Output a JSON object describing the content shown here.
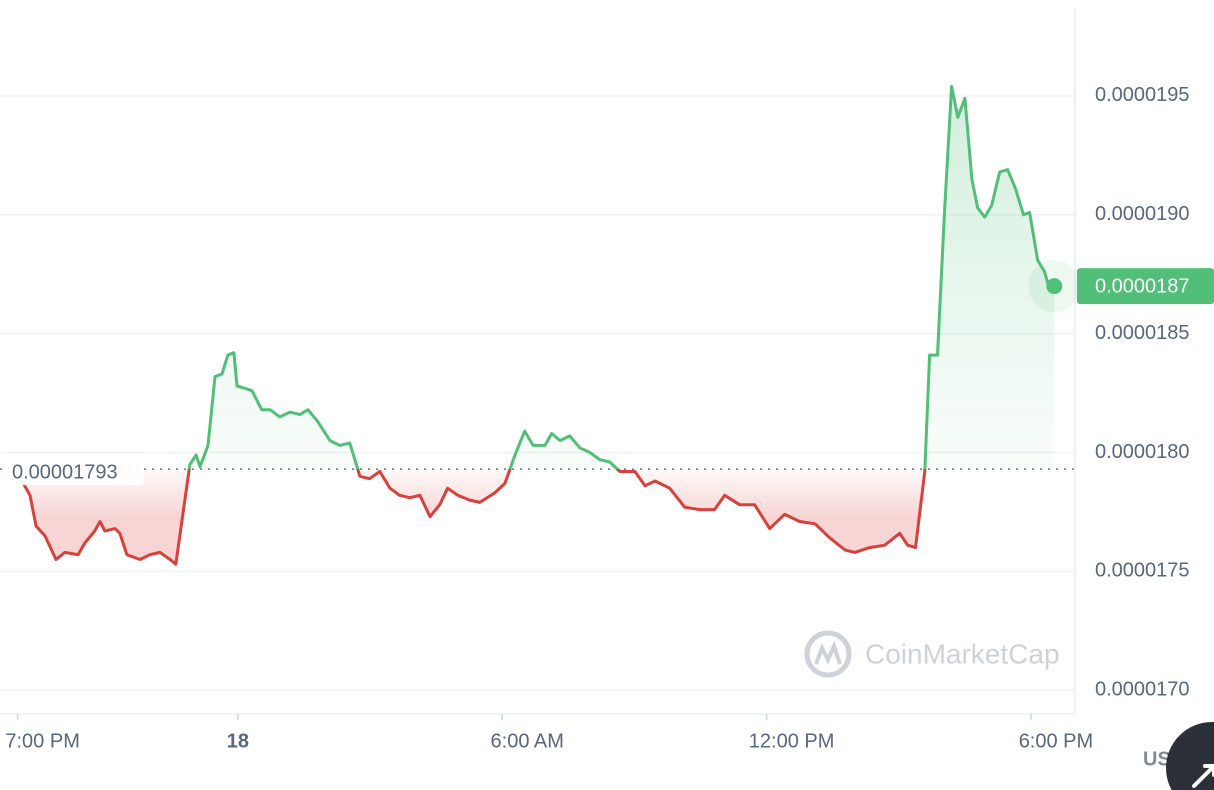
{
  "chart_data": {
    "type": "line",
    "x": [
      -4.9,
      -4.72,
      -4.58,
      -4.38,
      -4.13,
      -3.93,
      -3.63,
      -3.47,
      -3.25,
      -3.13,
      -3.02,
      -2.79,
      -2.68,
      -2.52,
      -2.22,
      -2.0,
      -1.77,
      -1.54,
      -1.41,
      -1.09,
      -0.95,
      -0.86,
      -0.68,
      -0.52,
      -0.36,
      -0.23,
      -0.09,
      -0.02,
      0.16,
      0.32,
      0.54,
      0.73,
      0.95,
      1.18,
      1.41,
      1.59,
      1.81,
      2.09,
      2.31,
      2.54,
      2.77,
      2.99,
      3.22,
      3.45,
      3.67,
      3.9,
      4.13,
      4.36,
      4.58,
      4.76,
      4.99,
      5.26,
      5.49,
      5.83,
      6.06,
      6.29,
      6.51,
      6.7,
      6.97,
      7.12,
      7.31,
      7.53,
      7.76,
      7.99,
      8.21,
      8.44,
      8.67,
      9.01,
      9.24,
      9.47,
      9.8,
      10.14,
      10.48,
      10.82,
      11.05,
      11.39,
      11.73,
      12.07,
      12.41,
      12.75,
      13.1,
      13.44,
      13.78,
      14.0,
      14.34,
      14.68,
      15.02,
      15.2,
      15.38,
      15.59,
      15.7,
      15.88,
      16.04,
      16.2,
      16.34,
      16.5,
      16.66,
      16.79,
      16.95,
      17.11,
      17.29,
      17.47,
      17.65,
      17.83,
      17.97,
      18.15,
      18.31,
      18.43,
      18.53
    ],
    "values": [
      1.788e-05,
      1.782e-05,
      1.769e-05,
      1.765e-05,
      1.755e-05,
      1.758e-05,
      1.757e-05,
      1.762e-05,
      1.767e-05,
      1.771e-05,
      1.767e-05,
      1.768e-05,
      1.766e-05,
      1.757e-05,
      1.755e-05,
      1.757e-05,
      1.758e-05,
      1.755e-05,
      1.753e-05,
      1.795e-05,
      1.799e-05,
      1.794e-05,
      1.803e-05,
      1.832e-05,
      1.833e-05,
      1.841e-05,
      1.842e-05,
      1.828e-05,
      1.827e-05,
      1.826e-05,
      1.818e-05,
      1.818e-05,
      1.815e-05,
      1.817e-05,
      1.816e-05,
      1.818e-05,
      1.813e-05,
      1.805e-05,
      1.803e-05,
      1.804e-05,
      1.79e-05,
      1.789e-05,
      1.792e-05,
      1.785e-05,
      1.782e-05,
      1.781e-05,
      1.782e-05,
      1.773e-05,
      1.778e-05,
      1.785e-05,
      1.782e-05,
      1.78e-05,
      1.779e-05,
      1.783e-05,
      1.787e-05,
      1.799e-05,
      1.809e-05,
      1.803e-05,
      1.803e-05,
      1.808e-05,
      1.805e-05,
      1.807e-05,
      1.802e-05,
      1.8e-05,
      1.797e-05,
      1.796e-05,
      1.792e-05,
      1.792e-05,
      1.786e-05,
      1.788e-05,
      1.785e-05,
      1.777e-05,
      1.776e-05,
      1.776e-05,
      1.782e-05,
      1.778e-05,
      1.778e-05,
      1.768e-05,
      1.774e-05,
      1.771e-05,
      1.77e-05,
      1.764e-05,
      1.759e-05,
      1.758e-05,
      1.76e-05,
      1.761e-05,
      1.766e-05,
      1.761e-05,
      1.76e-05,
      1.792e-05,
      1.841e-05,
      1.841e-05,
      1.902e-05,
      1.954e-05,
      1.941e-05,
      1.949e-05,
      1.915e-05,
      1.903e-05,
      1.899e-05,
      1.904e-05,
      1.918e-05,
      1.919e-05,
      1.911e-05,
      1.9e-05,
      1.901e-05,
      1.881e-05,
      1.876e-05,
      1.868e-05,
      1.87e-05
    ],
    "up_color": "#52bf78",
    "down_color": "#d9403b",
    "baseline": 1.793e-05,
    "current_price": 1.87e-05,
    "xlim": [
      -5.4,
      19.0
    ],
    "xticks": [
      {
        "value": -5,
        "label": "7:00 PM"
      },
      {
        "value": 0,
        "label": "18"
      },
      {
        "value": 6,
        "label": "6:00 AM"
      },
      {
        "value": 12,
        "label": "12:00 PM"
      },
      {
        "value": 18,
        "label": "6:00 PM"
      }
    ],
    "ylim": [
      1.69e-05,
      1.987e-05
    ],
    "yticks": [
      {
        "value": 1.7e-05,
        "label": "0.0000170"
      },
      1.75e-05,
      {
        "value": 1.8e-05,
        "label": "0.0000180"
      },
      1.85e-05,
      {
        "value": 1.9e-05,
        "label": "0.0000190"
      },
      1.95e-05
    ],
    "grid": true,
    "watermark": "CoinMarketCap",
    "currency": "USD"
  }
}
